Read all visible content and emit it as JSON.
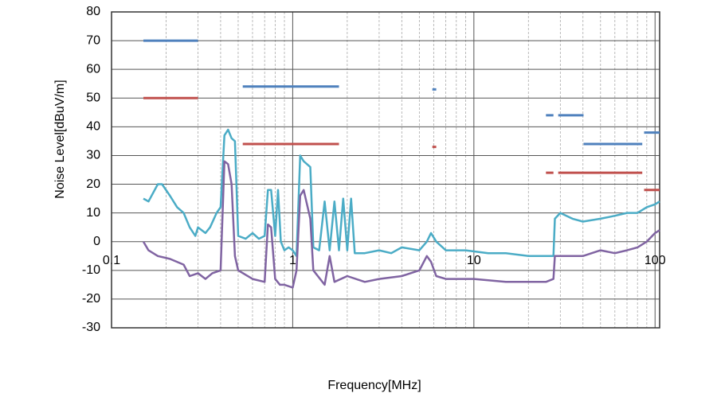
{
  "chart_data": {
    "type": "line",
    "x_label": "Frequency[MHz]",
    "y_label": "Noise Level[dBuV/m]",
    "log_x": true,
    "grid": true,
    "xlim": [
      0.1,
      106
    ],
    "ylim": [
      -30,
      80
    ],
    "xticks": [
      0.1,
      1,
      10,
      100
    ],
    "xminorticks": [
      0.2,
      0.3,
      0.4,
      0.5,
      0.6,
      0.7,
      0.8,
      0.9,
      2,
      3,
      4,
      5,
      6,
      7,
      8,
      9,
      20,
      30,
      40,
      50,
      60,
      70,
      80,
      90
    ],
    "yticks": [
      -30,
      -20,
      -10,
      0,
      10,
      20,
      30,
      40,
      50,
      60,
      70,
      80
    ],
    "series": [
      {
        "color": "#4f81bd",
        "width": 3,
        "x": [
          0.15,
          0.3,
          null,
          0.53,
          1.8,
          null,
          5.9,
          6.2,
          null,
          25,
          27.5,
          null,
          29.2,
          40.3,
          null,
          40.3,
          85,
          null,
          87,
          106
        ],
        "values": [
          70,
          70,
          null,
          54,
          54,
          null,
          53,
          53,
          null,
          44,
          44,
          null,
          44,
          44,
          null,
          34,
          34,
          null,
          38,
          38
        ]
      },
      {
        "color": "#c0504d",
        "width": 3,
        "x": [
          0.15,
          0.3,
          null,
          0.53,
          1.8,
          null,
          5.9,
          6.2,
          null,
          25,
          27.5,
          null,
          29.2,
          85,
          null,
          87,
          106
        ],
        "values": [
          50,
          50,
          null,
          34,
          34,
          null,
          33,
          33,
          null,
          24,
          24,
          null,
          24,
          24,
          null,
          18,
          18
        ]
      },
      {
        "color": "#4bacc6",
        "width": 2.5,
        "x": [
          0.15,
          0.16,
          0.18,
          0.19,
          0.21,
          0.23,
          0.25,
          0.27,
          0.29,
          0.3,
          0.33,
          0.35,
          0.38,
          0.4,
          0.42,
          0.44,
          0.46,
          0.48,
          0.5,
          0.55,
          0.6,
          0.65,
          0.7,
          0.73,
          0.76,
          0.8,
          0.83,
          0.86,
          0.9,
          0.95,
          1.0,
          1.05,
          1.1,
          1.15,
          1.25,
          1.3,
          1.4,
          1.5,
          1.6,
          1.7,
          1.8,
          1.9,
          2.0,
          2.1,
          2.2,
          2.5,
          3,
          3.5,
          4,
          5,
          5.5,
          5.8,
          6.2,
          7,
          9,
          12,
          15,
          20,
          25,
          27.5,
          28,
          30,
          35,
          40,
          50,
          60,
          70,
          80,
          90,
          100,
          106
        ],
        "values": [
          15,
          14,
          20,
          20,
          16,
          12,
          10,
          5,
          2,
          5,
          3,
          5,
          10,
          12,
          37,
          39,
          36,
          35,
          2,
          1,
          3,
          1,
          2,
          18,
          18,
          2,
          18,
          0,
          -3,
          -2,
          -3,
          -5,
          30,
          28,
          26,
          -2,
          -3,
          14,
          -3,
          14,
          -3,
          15,
          -3,
          15,
          -4,
          -4,
          -3,
          -4,
          -2,
          -3,
          0,
          3,
          0,
          -3,
          -3,
          -4,
          -4,
          -5,
          -5,
          -5,
          8,
          10,
          8,
          7,
          8,
          9,
          10,
          10,
          12,
          13,
          14
        ]
      },
      {
        "color": "#8064a2",
        "width": 2.5,
        "x": [
          0.15,
          0.16,
          0.18,
          0.21,
          0.25,
          0.27,
          0.3,
          0.33,
          0.36,
          0.4,
          0.42,
          0.44,
          0.46,
          0.48,
          0.5,
          0.6,
          0.7,
          0.73,
          0.76,
          0.8,
          0.85,
          0.9,
          1.0,
          1.05,
          1.1,
          1.15,
          1.25,
          1.3,
          1.5,
          1.6,
          1.7,
          2,
          2.5,
          3,
          4,
          5,
          5.5,
          5.8,
          6.2,
          7,
          10,
          15,
          20,
          25,
          27.5,
          28,
          30,
          40,
          50,
          60,
          70,
          80,
          90,
          100,
          106
        ],
        "values": [
          0,
          -3,
          -5,
          -6,
          -8,
          -12,
          -11,
          -13,
          -11,
          -10,
          28,
          27,
          20,
          -5,
          -10,
          -13,
          -14,
          6,
          5,
          -13,
          -15,
          -15,
          -16,
          -10,
          16,
          18,
          8,
          -10,
          -15,
          -5,
          -14,
          -12,
          -14,
          -13,
          -12,
          -10,
          -5,
          -7,
          -12,
          -13,
          -13,
          -14,
          -14,
          -14,
          -13,
          -5,
          -5,
          -5,
          -3,
          -4,
          -3,
          -2,
          0,
          3,
          4
        ]
      }
    ]
  }
}
